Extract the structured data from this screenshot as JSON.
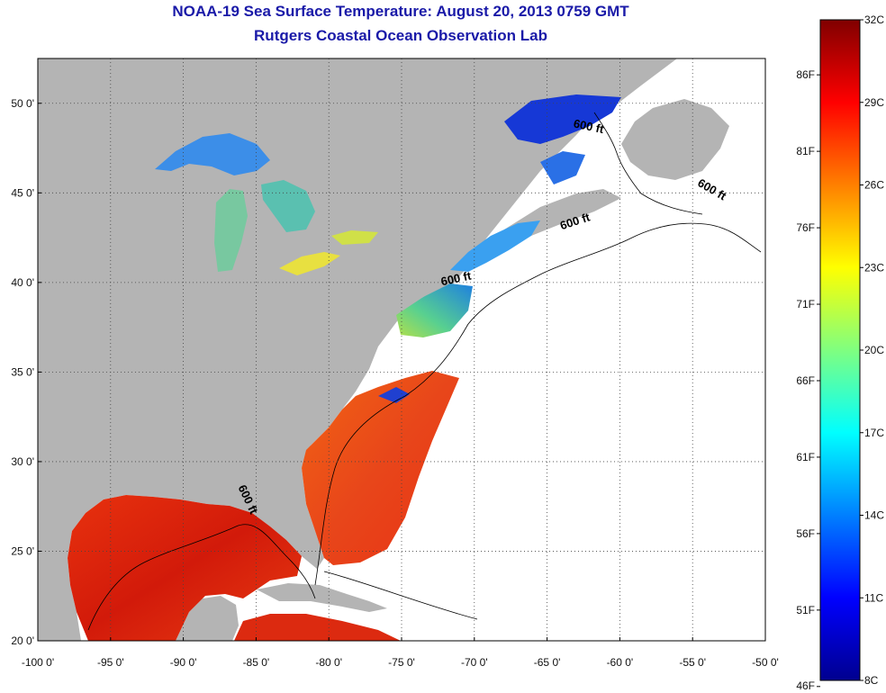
{
  "header": {
    "title": "NOAA-19 Sea Surface Temperature:  August 20, 2013 0759 GMT",
    "subtitle": "Rutgers Coastal Ocean Observation Lab"
  },
  "map": {
    "lon_range": [
      -100,
      -50
    ],
    "lat_range": [
      20,
      52.5
    ],
    "lon_ticks": [
      {
        "value": -100,
        "label": "-100 0'"
      },
      {
        "value": -95,
        "label": "-95 0'"
      },
      {
        "value": -90,
        "label": "-90 0'"
      },
      {
        "value": -85,
        "label": "-85 0'"
      },
      {
        "value": -80,
        "label": "-80 0'"
      },
      {
        "value": -75,
        "label": "-75 0'"
      },
      {
        "value": -70,
        "label": "-70 0'"
      },
      {
        "value": -65,
        "label": "-65 0'"
      },
      {
        "value": -60,
        "label": "-60 0'"
      },
      {
        "value": -55,
        "label": "-55 0'"
      },
      {
        "value": -50,
        "label": "-50 0'"
      }
    ],
    "lat_ticks": [
      {
        "value": 50,
        "label": "50 0'"
      },
      {
        "value": 45,
        "label": "45 0'"
      },
      {
        "value": 40,
        "label": "40 0'"
      },
      {
        "value": 35,
        "label": "35 0'"
      },
      {
        "value": 30,
        "label": "30 0'"
      },
      {
        "value": 25,
        "label": "25 0'"
      },
      {
        "value": 20,
        "label": "20 0'"
      }
    ],
    "grid": true,
    "contour_labels": [
      {
        "text": "600 ft",
        "lon": -62.2,
        "lat": 48.5,
        "angle": 12
      },
      {
        "text": "600 ft",
        "lon": -53.8,
        "lat": 45.0,
        "angle": 30
      },
      {
        "text": "600 ft",
        "lon": -63.0,
        "lat": 43.2,
        "angle": -18
      },
      {
        "text": "600 ft",
        "lon": -71.2,
        "lat": 40.0,
        "angle": -12
      },
      {
        "text": "600 ft",
        "lon": -85.8,
        "lat": 27.8,
        "angle": 65
      }
    ],
    "colors": {
      "land": "#b4b4b4",
      "cloud": "#ffffff",
      "frame": "#000000"
    }
  },
  "colorbar": {
    "celsius": [
      {
        "value": 32,
        "label": "32C"
      },
      {
        "value": 29,
        "label": "29C"
      },
      {
        "value": 26,
        "label": "26C"
      },
      {
        "value": 23,
        "label": "23C"
      },
      {
        "value": 20,
        "label": "20C"
      },
      {
        "value": 17,
        "label": "17C"
      },
      {
        "value": 14,
        "label": "14C"
      },
      {
        "value": 11,
        "label": "11C"
      },
      {
        "value": 8,
        "label": "8C"
      }
    ],
    "fahrenheit": [
      {
        "value": 86,
        "label": "86F"
      },
      {
        "value": 81,
        "label": "81F"
      },
      {
        "value": 76,
        "label": "76F"
      },
      {
        "value": 71,
        "label": "71F"
      },
      {
        "value": 66,
        "label": "66F"
      },
      {
        "value": 61,
        "label": "61F"
      },
      {
        "value": 56,
        "label": "56F"
      },
      {
        "value": 51,
        "label": "51F"
      },
      {
        "value": 46,
        "label": "46F"
      }
    ],
    "range_c": [
      8,
      32
    ],
    "stops": [
      "#00008f",
      "#0000ff",
      "#00ffff",
      "#ffff00",
      "#ff0000",
      "#800000"
    ],
    "colormap": "jet"
  }
}
